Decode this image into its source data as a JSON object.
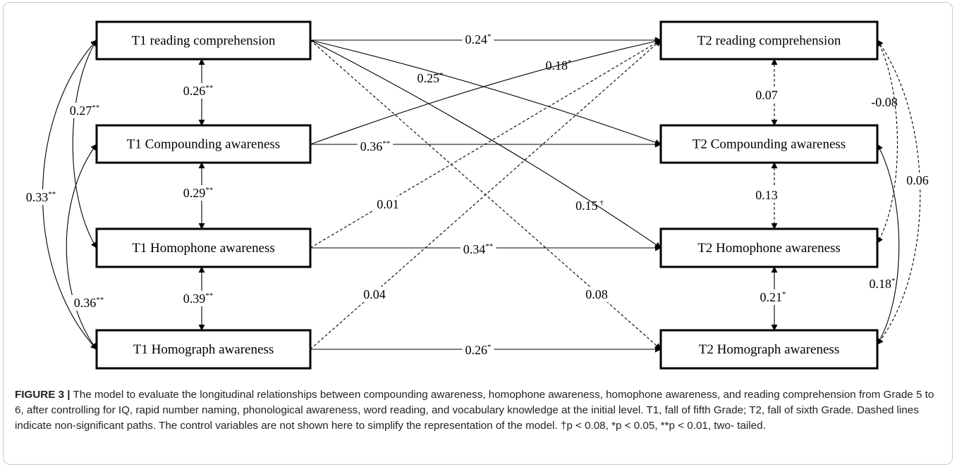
{
  "nodes": {
    "t1_rc": "T1 reading comprehension",
    "t1_ca": "T1 Compounding awareness",
    "t1_hph": "T1 Homophone awareness",
    "t1_hgr": "T1 Homograph awareness",
    "t2_rc": "T2 reading comprehension",
    "t2_ca": "T2 Compounding awareness",
    "t2_hph": "T2 Homophone awareness",
    "t2_hgr": "T2 Homograph awareness"
  },
  "paths": [
    {
      "id": "rc1-rc2",
      "value": "0.24",
      "sig": "*",
      "significant": true
    },
    {
      "id": "rc1-ca2",
      "value": "0.25",
      "sig": "*",
      "significant": true
    },
    {
      "id": "ca1-rc2",
      "value": "0.18",
      "sig": "*",
      "significant": true
    },
    {
      "id": "ca1-ca2",
      "value": "0.36",
      "sig": "**",
      "significant": true
    },
    {
      "id": "rc1-hph2",
      "value": "0.15",
      "sig": "†",
      "significant": true
    },
    {
      "id": "hph1-rc2",
      "value": "0.01",
      "sig": "",
      "significant": false
    },
    {
      "id": "hph1-hph2",
      "value": "0.34",
      "sig": "**",
      "significant": true
    },
    {
      "id": "hgr1-rc2",
      "value": "0.04",
      "sig": "",
      "significant": false
    },
    {
      "id": "rc1-hgr2",
      "value": "0.08",
      "sig": "",
      "significant": false
    },
    {
      "id": "hgr1-hgr2",
      "value": "0.26",
      "sig": "*",
      "significant": true
    },
    {
      "id": "t1-rc-ca",
      "value": "0.26",
      "sig": "**",
      "significant": true
    },
    {
      "id": "t1-ca-hph",
      "value": "0.29",
      "sig": "**",
      "significant": true
    },
    {
      "id": "t1-hph-hgr",
      "value": "0.39",
      "sig": "**",
      "significant": true
    },
    {
      "id": "t1-rc-hph",
      "value": "0.27",
      "sig": "**",
      "significant": true
    },
    {
      "id": "t1-rc-hgr",
      "value": "0.33",
      "sig": "**",
      "significant": true
    },
    {
      "id": "t1-ca-hgr",
      "value": "0.36",
      "sig": "**",
      "significant": true
    },
    {
      "id": "t2-rc-ca",
      "value": "0.07",
      "sig": "",
      "significant": false
    },
    {
      "id": "t2-ca-hph",
      "value": "0.13",
      "sig": "",
      "significant": false
    },
    {
      "id": "t2-hph-hgr",
      "value": "0.21",
      "sig": "*",
      "significant": true
    },
    {
      "id": "t2-rc-hph",
      "value": "-0.08",
      "sig": "",
      "significant": false
    },
    {
      "id": "t2-rc-hgr",
      "value": "0.06",
      "sig": "",
      "significant": false
    },
    {
      "id": "t2-ca-hgr",
      "value": "0.18",
      "sig": "*",
      "significant": true
    }
  ],
  "caption": {
    "figure_label": "FIGURE 3 |",
    "text": "The model to evaluate the longitudinal relationships between compounding awareness, homophone awareness, homophone awareness, and reading comprehension from Grade 5 to 6, after controlling for IQ, rapid number naming, phonological awareness, word reading, and vocabulary knowledge at the initial level. T1, fall of fifth Grade; T2, fall of sixth Grade. Dashed lines indicate non-significant paths. The control variables are not shown here to simplify the representation of the model. †p < 0.08, *p < 0.05, **p < 0.01, two- tailed."
  }
}
